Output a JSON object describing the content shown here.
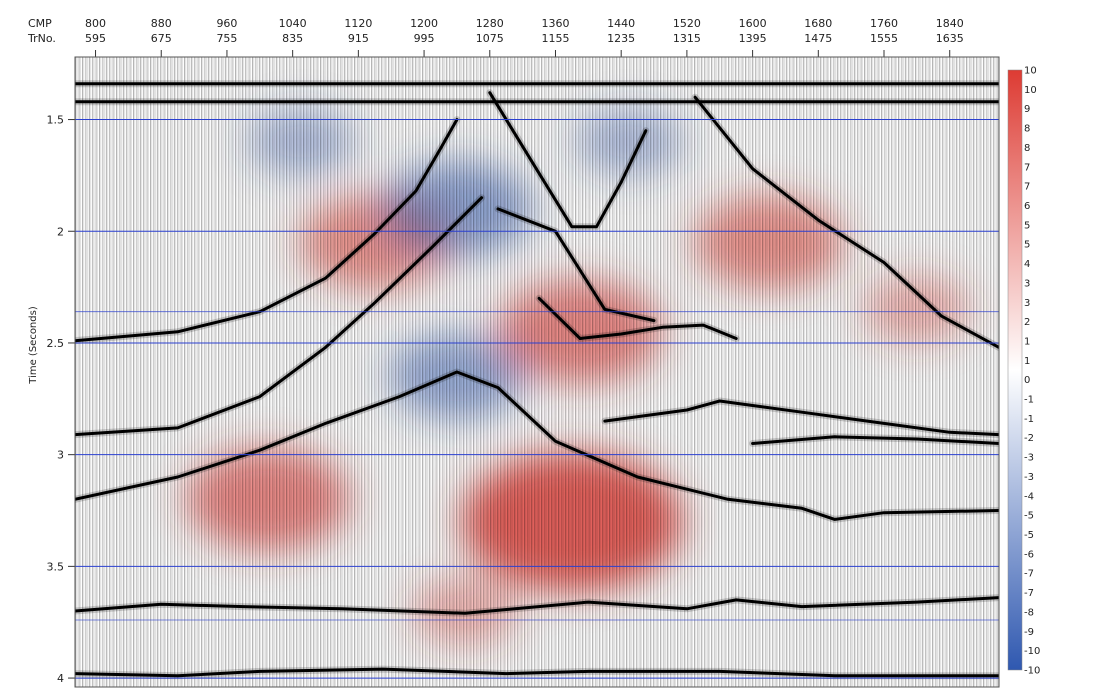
{
  "chart_data": {
    "type": "heatmap",
    "title": "",
    "top_axis": {
      "row1_label": "CMP",
      "row2_label": "TrNo.",
      "cmp": [
        "800",
        "880",
        "960",
        "1040",
        "1120",
        "1200",
        "1280",
        "1360",
        "1440",
        "1520",
        "1600",
        "1680",
        "1760",
        "1840"
      ],
      "trno": [
        "595",
        "675",
        "755",
        "835",
        "915",
        "995",
        "1075",
        "1155",
        "1235",
        "1315",
        "1395",
        "1475",
        "1555",
        "1635"
      ],
      "cmp_range": [
        775,
        1900
      ]
    },
    "y_axis": {
      "label": "Time (Seconds)",
      "ticks": [
        "1.5",
        "2",
        "2.5",
        "3",
        "3.5",
        "4"
      ],
      "tick_values": [
        1.5,
        2.0,
        2.5,
        3.0,
        3.5,
        4.0
      ],
      "range": [
        1.22,
        4.04
      ]
    },
    "grid": true,
    "colorbar": {
      "labels": [
        "10",
        "10",
        "9",
        "8",
        "8",
        "7",
        "7",
        "6",
        "5",
        "5",
        "4",
        "3",
        "3",
        "2",
        "1",
        "1",
        "0",
        "-1",
        "-1",
        "-2",
        "-3",
        "-3",
        "-4",
        "-5",
        "-5",
        "-6",
        "-7",
        "-7",
        "-8",
        "-9",
        "-10",
        "-10"
      ],
      "min": -10,
      "max": 10,
      "positive_color": "#dd3b33",
      "zero_color": "#ffffff",
      "negative_color": "#2f58b0"
    },
    "anomalies": [
      {
        "cmp": 1380,
        "time": 3.3,
        "value": 10
      },
      {
        "cmp": 1010,
        "time": 3.2,
        "value": 6
      },
      {
        "cmp": 1140,
        "time": 2.05,
        "value": 5
      },
      {
        "cmp": 1620,
        "time": 2.05,
        "value": 5
      },
      {
        "cmp": 1390,
        "time": 2.45,
        "value": 6
      },
      {
        "cmp": 1240,
        "time": 2.65,
        "value": -4
      },
      {
        "cmp": 1240,
        "time": 1.9,
        "value": -5
      },
      {
        "cmp": 1050,
        "time": 1.6,
        "value": -2
      },
      {
        "cmp": 1450,
        "time": 1.6,
        "value": -2
      },
      {
        "cmp": 1250,
        "time": 3.7,
        "value": 2
      },
      {
        "cmp": 1800,
        "time": 2.35,
        "value": 2
      }
    ],
    "reflectors": [
      {
        "points": [
          [
            775,
            1.34
          ],
          [
            1900,
            1.34
          ]
        ]
      },
      {
        "points": [
          [
            775,
            1.42
          ],
          [
            1900,
            1.42
          ]
        ]
      },
      {
        "points": [
          [
            775,
            2.49
          ],
          [
            900,
            2.45
          ],
          [
            1000,
            2.36
          ],
          [
            1080,
            2.21
          ],
          [
            1140,
            2.01
          ],
          [
            1190,
            1.82
          ],
          [
            1220,
            1.63
          ],
          [
            1240,
            1.5
          ]
        ]
      },
      {
        "points": [
          [
            775,
            2.91
          ],
          [
            900,
            2.88
          ],
          [
            1000,
            2.74
          ],
          [
            1080,
            2.52
          ],
          [
            1140,
            2.32
          ],
          [
            1210,
            2.07
          ],
          [
            1270,
            1.85
          ]
        ]
      },
      {
        "points": [
          [
            775,
            3.2
          ],
          [
            900,
            3.1
          ],
          [
            1000,
            2.98
          ],
          [
            1080,
            2.86
          ],
          [
            1170,
            2.74
          ],
          [
            1240,
            2.63
          ],
          [
            1290,
            2.7
          ],
          [
            1360,
            2.94
          ],
          [
            1460,
            3.1
          ],
          [
            1570,
            3.2
          ],
          [
            1660,
            3.24
          ],
          [
            1700,
            3.29
          ],
          [
            1760,
            3.26
          ],
          [
            1900,
            3.25
          ]
        ]
      },
      {
        "points": [
          [
            1280,
            1.38
          ],
          [
            1330,
            1.68
          ],
          [
            1380,
            1.98
          ],
          [
            1410,
            1.98
          ],
          [
            1440,
            1.78
          ],
          [
            1470,
            1.55
          ]
        ]
      },
      {
        "points": [
          [
            1530,
            1.4
          ],
          [
            1600,
            1.72
          ],
          [
            1680,
            1.95
          ],
          [
            1760,
            2.14
          ],
          [
            1830,
            2.38
          ],
          [
            1900,
            2.52
          ]
        ]
      },
      {
        "points": [
          [
            1290,
            1.9
          ],
          [
            1360,
            2.0
          ],
          [
            1420,
            2.35
          ],
          [
            1480,
            2.4
          ]
        ]
      },
      {
        "points": [
          [
            1340,
            2.3
          ],
          [
            1390,
            2.48
          ],
          [
            1440,
            2.46
          ],
          [
            1490,
            2.43
          ],
          [
            1540,
            2.42
          ],
          [
            1580,
            2.48
          ]
        ]
      },
      {
        "points": [
          [
            1420,
            2.85
          ],
          [
            1520,
            2.8
          ],
          [
            1560,
            2.76
          ],
          [
            1600,
            2.78
          ],
          [
            1660,
            2.81
          ],
          [
            1760,
            2.86
          ],
          [
            1840,
            2.9
          ],
          [
            1900,
            2.91
          ]
        ]
      },
      {
        "points": [
          [
            1600,
            2.95
          ],
          [
            1700,
            2.92
          ],
          [
            1800,
            2.93
          ],
          [
            1900,
            2.95
          ]
        ]
      },
      {
        "points": [
          [
            775,
            3.7
          ],
          [
            880,
            3.67
          ],
          [
            980,
            3.68
          ],
          [
            1100,
            3.69
          ],
          [
            1250,
            3.71
          ],
          [
            1400,
            3.66
          ],
          [
            1520,
            3.69
          ],
          [
            1580,
            3.65
          ],
          [
            1660,
            3.68
          ],
          [
            1800,
            3.66
          ],
          [
            1900,
            3.64
          ]
        ]
      },
      {
        "points": [
          [
            775,
            3.98
          ],
          [
            900,
            3.99
          ],
          [
            1000,
            3.97
          ],
          [
            1150,
            3.96
          ],
          [
            1300,
            3.98
          ],
          [
            1400,
            3.97
          ],
          [
            1560,
            3.97
          ],
          [
            1700,
            3.99
          ],
          [
            1900,
            3.99
          ]
        ]
      }
    ]
  }
}
